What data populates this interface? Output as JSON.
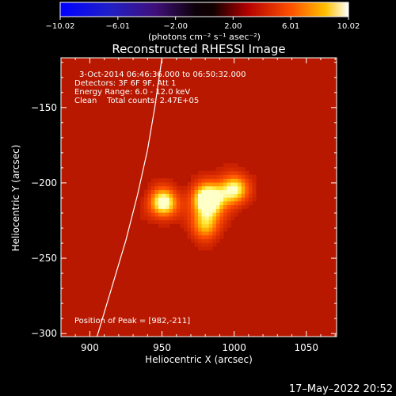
{
  "chart_data": {
    "type": "heatmap",
    "title": "Reconstructed RHESSI Image",
    "xlabel": "Heliocentric X (arcsec)",
    "ylabel": "Heliocentric Y (arcsec)",
    "xlim": [
      880,
      1071
    ],
    "ylim": [
      -302,
      -117
    ],
    "xticks": [
      900,
      950,
      1000,
      1050
    ],
    "yticks": [
      -150,
      -200,
      -250,
      -300
    ],
    "xtick_labels": [
      "900",
      "950",
      "1000",
      "1050"
    ],
    "ytick_labels": [
      "−150",
      "−200",
      "−250",
      "−300"
    ],
    "colorbar": {
      "min": -10.02,
      "max": 10.02,
      "tick_values": [
        -10.02,
        -6.01,
        -2.0,
        2.0,
        6.01,
        10.02
      ],
      "tick_labels": [
        "−10.02",
        "−6.01",
        "−2.00",
        "2.00",
        "6.01",
        "10.02"
      ],
      "units_text": "(photons cm⁻² s⁻¹ asec⁻²)"
    },
    "sources": [
      {
        "x": 951,
        "y": -213,
        "peak": 8.5,
        "sigma": 7
      },
      {
        "x": 982,
        "y": -211,
        "peak": 10.02,
        "sigma": 8
      },
      {
        "x": 1000,
        "y": -204,
        "peak": 7.5,
        "sigma": 7
      },
      {
        "x": 980,
        "y": -228,
        "peak": 5.5,
        "sigma": 7
      }
    ],
    "annotations": {
      "time_range": "3-Oct-2014 06:46:36.000 to 06:50:32.000",
      "detectors": "Detectors: 3F 6F 9F, Att 1",
      "energy": "Energy Range: 6.0 - 12.0 keV",
      "clean": "Clean    Total counts: 2.47E+05",
      "peak": "Position of Peak = [982,-211]"
    },
    "limb_curve": [
      [
        905,
        -302
      ],
      [
        915,
        -270
      ],
      [
        925,
        -238
      ],
      [
        933,
        -208
      ],
      [
        940,
        -178
      ],
      [
        945,
        -150
      ],
      [
        950,
        -117
      ]
    ]
  },
  "footer": {
    "timestamp": "17–May–2022 20:52"
  }
}
